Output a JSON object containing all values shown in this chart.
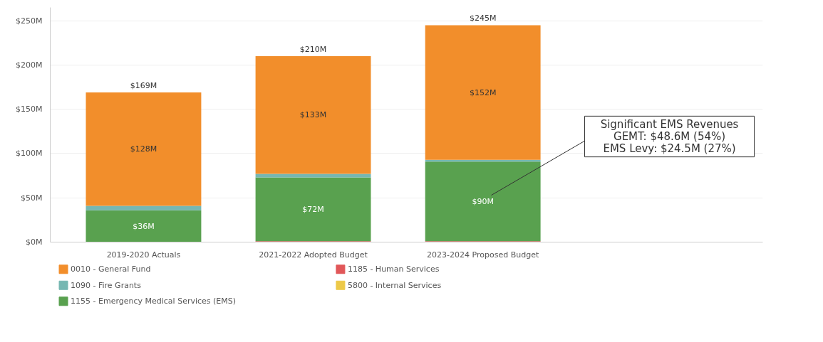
{
  "chart_data": {
    "type": "bar",
    "stacked": true,
    "categories": [
      "2019-2020 Actuals",
      "2021-2022 Adopted Budget",
      "2023-2024 Proposed Budget"
    ],
    "series": [
      {
        "name": "1185 - Human Services",
        "color": "#e15759",
        "values": [
          0,
          1,
          1
        ]
      },
      {
        "name": "5800 - Internal Services",
        "color": "#edc948",
        "values": [
          0,
          0,
          0
        ]
      },
      {
        "name": "1155 - Emergency Medical Services (EMS)",
        "color": "#59a14f",
        "values": [
          36,
          72,
          90
        ],
        "value_labels": [
          "$36M",
          "$72M",
          "$90M"
        ]
      },
      {
        "name": "1090 - Fire Grants",
        "color": "#76b7b2",
        "values": [
          5,
          4,
          2
        ]
      },
      {
        "name": "0010 - General Fund",
        "color": "#f28e2b",
        "values": [
          128,
          133,
          152
        ],
        "value_labels": [
          "$128M",
          "$133M",
          "$152M"
        ]
      }
    ],
    "totals": [
      "$169M",
      "$210M",
      "$245M"
    ],
    "ylim": [
      0,
      265
    ],
    "yticks": [
      {
        "value": 0,
        "label": "$0M"
      },
      {
        "value": 50,
        "label": "$50M"
      },
      {
        "value": 100,
        "label": "$100M"
      },
      {
        "value": 150,
        "label": "$150M"
      },
      {
        "value": 200,
        "label": "$200M"
      },
      {
        "value": 250,
        "label": "$250M"
      }
    ],
    "grid": "y",
    "legend": "bottom",
    "annotations": [
      "Significant EMS Revenues\nGEMT: $48.6M (54%)\nEMS Levy: $24.5M (27%)"
    ]
  }
}
